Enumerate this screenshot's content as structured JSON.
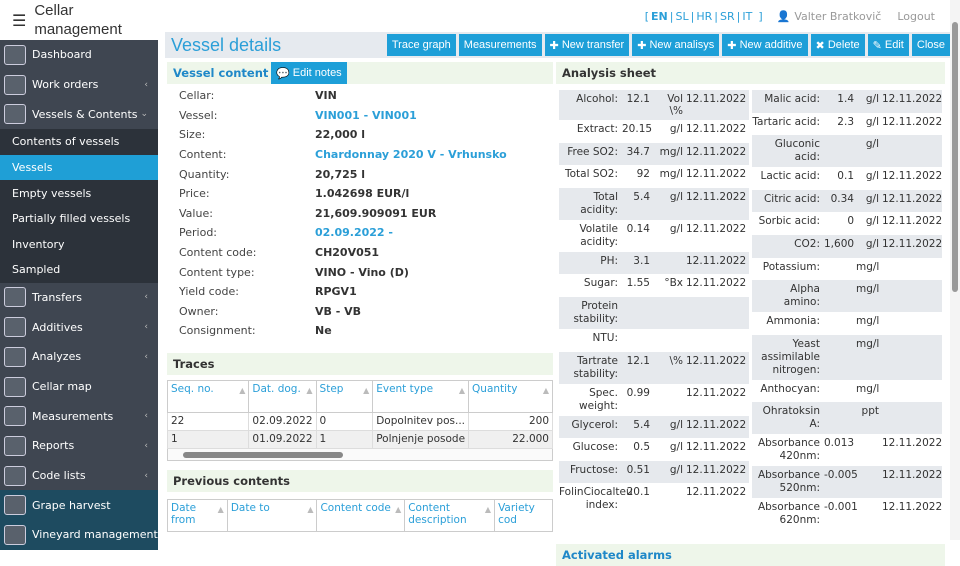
{
  "app": {
    "title": "Cellar management",
    "menu_icon": "hamburger-icon"
  },
  "sidebar": {
    "items": [
      {
        "label": "Dashboard",
        "icon": "dashboard-icon"
      },
      {
        "label": "Work orders",
        "icon": "work-orders-icon"
      },
      {
        "label": "Vessels & Contents",
        "icon": "vessels-icon"
      },
      {
        "label": "Transfers",
        "icon": "transfers-icon"
      },
      {
        "label": "Additives",
        "icon": "additives-icon"
      },
      {
        "label": "Analyzes",
        "icon": "analyzes-icon"
      },
      {
        "label": "Cellar map",
        "icon": "cellar-map-icon"
      },
      {
        "label": "Measurements",
        "icon": "measurements-icon"
      },
      {
        "label": "Reports",
        "icon": "reports-icon"
      },
      {
        "label": "Code lists",
        "icon": "code-lists-icon"
      },
      {
        "label": "Grape harvest",
        "icon": "grape-harvest-icon"
      },
      {
        "label": "Vineyard management",
        "icon": "vineyard-icon"
      }
    ],
    "sub": [
      "Contents of vessels",
      "Vessels",
      "Empty vessels",
      "Partially filled vessels",
      "Inventory",
      "Sampled"
    ],
    "active": "Vessels",
    "accent": "#1f9fd6"
  },
  "topbar": {
    "lang_open": "[",
    "langs": [
      "EN",
      "SL",
      "HR",
      "SR",
      "IT"
    ],
    "lang_close": "]",
    "active_lang": "EN",
    "user": "Valter Bratkovič",
    "logout": "Logout"
  },
  "page": {
    "title": "Vessel details"
  },
  "toolbar": {
    "trace_graph": "Trace graph",
    "measurements": "Measurements",
    "new_transfer": "New transfer",
    "new_analysis": "New analisys",
    "new_additive": "New additive",
    "delete": "Delete",
    "edit": "Edit",
    "close": "Close"
  },
  "vessel_content": {
    "title": "Vessel content",
    "edit_notes": "Edit notes",
    "fields": [
      {
        "k": "Cellar:",
        "v": "VIN"
      },
      {
        "k": "Vessel:",
        "v": "VIN001 - VIN001",
        "link": true
      },
      {
        "k": "Size:",
        "v": "22,000 l"
      },
      {
        "k": "Content:",
        "v": "Chardonnay 2020 V - Vrhunsko",
        "link": true
      },
      {
        "k": "Quantity:",
        "v": "20,725 l"
      },
      {
        "k": "Price:",
        "v": "1.042698 EUR/l"
      },
      {
        "k": "Value:",
        "v": "21,609.909091 EUR"
      },
      {
        "k": "Period:",
        "v": "02.09.2022 -",
        "link": true
      },
      {
        "k": "Content code:",
        "v": "CH20V051"
      },
      {
        "k": "Content type:",
        "v": "VINO - Vino (D)"
      },
      {
        "k": "Yield code:",
        "v": "RPGV1"
      },
      {
        "k": "Owner:",
        "v": "VB - VB"
      },
      {
        "k": "Consignment:",
        "v": "Ne"
      }
    ]
  },
  "traces": {
    "title": "Traces",
    "columns": [
      "Seq. no.",
      "Dat. dog.",
      "Step",
      "Event type",
      "Quantity"
    ],
    "rows": [
      [
        "22",
        "02.09.2022",
        "0",
        "Dopolnitev pos...",
        "200"
      ],
      [
        "1",
        "01.09.2022",
        "1",
        "Polnjenje posode",
        "22.000"
      ]
    ]
  },
  "previous_contents": {
    "title": "Previous contents",
    "columns": [
      "Date from",
      "Date to",
      "Content code",
      "Content description",
      "Variety cod"
    ]
  },
  "analysis": {
    "title": "Analysis sheet",
    "left": [
      [
        "Alcohol:",
        "12.1",
        "Vol \\%",
        "12.11.2022"
      ],
      [
        "Extract:",
        "20.15",
        "g/l",
        "12.11.2022"
      ],
      [
        "Free SO2:",
        "34.7",
        "mg/l",
        "12.11.2022"
      ],
      [
        "Total SO2:",
        "92",
        "mg/l",
        "12.11.2022"
      ],
      [
        "Total acidity:",
        "5.4",
        "g/l",
        "12.11.2022"
      ],
      [
        "Volatile acidity:",
        "0.14",
        "g/l",
        "12.11.2022"
      ],
      [
        "PH:",
        "3.1",
        "",
        "12.11.2022"
      ],
      [
        "Sugar:",
        "1.55",
        "°Bx",
        "12.11.2022"
      ],
      [
        "Protein stability:",
        "",
        "",
        ""
      ],
      [
        "NTU:",
        "",
        "",
        ""
      ],
      [
        "Tartrate stability:",
        "12.1",
        "\\%",
        "12.11.2022"
      ],
      [
        "Spec. weight:",
        "0.99",
        "",
        "12.11.2022"
      ],
      [
        "Glycerol:",
        "5.4",
        "g/l",
        "12.11.2022"
      ],
      [
        "Glucose:",
        "0.5",
        "g/l",
        "12.11.2022"
      ],
      [
        "Fructose:",
        "0.51",
        "g/l",
        "12.11.2022"
      ],
      [
        "FolinCiocalteu index:",
        "20.1",
        "",
        "12.11.2022"
      ]
    ],
    "right": [
      [
        "Malic acid:",
        "1.4",
        "g/l",
        "12.11.2022"
      ],
      [
        "Tartaric acid:",
        "2.3",
        "g/l",
        "12.11.2022"
      ],
      [
        "Gluconic acid:",
        "",
        "g/l",
        ""
      ],
      [
        "Lactic acid:",
        "0.1",
        "g/l",
        "12.11.2022"
      ],
      [
        "Citric acid:",
        "0.34",
        "g/l",
        "12.11.2022"
      ],
      [
        "Sorbic acid:",
        "0",
        "g/l",
        "12.11.2022"
      ],
      [
        "CO2:",
        "1,600",
        "g/l",
        "12.11.2022"
      ],
      [
        "Potassium:",
        "",
        "mg/l",
        ""
      ],
      [
        "Alpha amino:",
        "",
        "mg/l",
        ""
      ],
      [
        "Ammonia:",
        "",
        "mg/l",
        ""
      ],
      [
        "Yeast assimilable nitrogen:",
        "",
        "mg/l",
        ""
      ],
      [
        "Anthocyan:",
        "",
        "mg/l",
        ""
      ],
      [
        "Ohratoksin A:",
        "",
        "ppt",
        ""
      ],
      [
        "Absorbance 420nm:",
        "0.013",
        "",
        "12.11.2022"
      ],
      [
        "Absorbance 520nm:",
        "-0.005",
        "",
        "12.11.2022"
      ],
      [
        "Absorbance 620nm:",
        "-0.001",
        "",
        "12.11.2022"
      ]
    ]
  },
  "alarms": {
    "title": "Activated alarms"
  }
}
